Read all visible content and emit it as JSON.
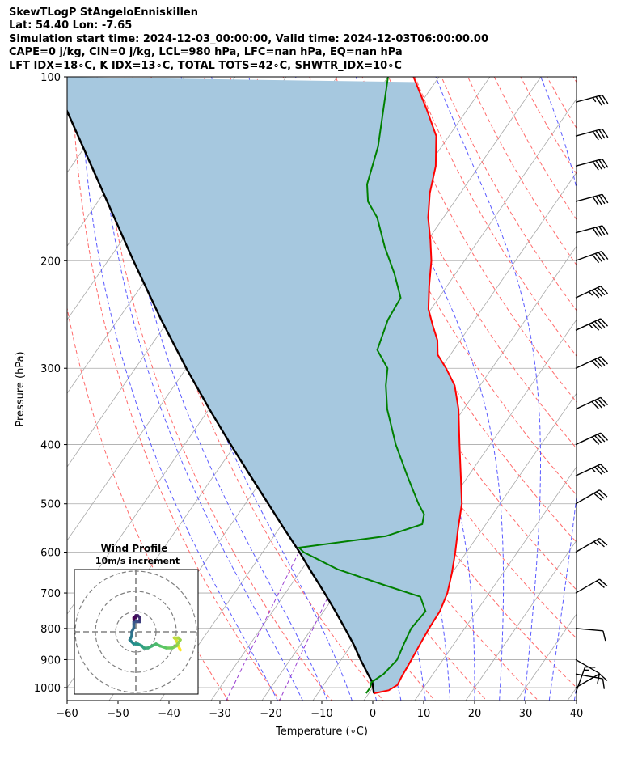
{
  "header": {
    "line1": "SkewTLogP StAngeloEnniskillen",
    "line2": "Lat: 54.40   Lon: -7.65",
    "line3": "Simulation start time: 2024-12-03_00:00:00, Valid time: 2024-12-03T06:00:00.00",
    "line4": "CAPE=0 j/kg, CIN=0 j/kg, LCL=980 hPa, LFC=nan hPa, EQ=nan hPa",
    "line5": "LFT IDX=18∘C, K IDX=13∘C, TOTAL TOTS=42∘C, SHWTR_IDX=10∘C"
  },
  "chart_data": {
    "type": "line",
    "xlabel": "Temperature (∘C)",
    "ylabel": "Pressure (hPa)",
    "xlim": [
      -60,
      40
    ],
    "ylim": [
      1050,
      100
    ],
    "y_scale": "log",
    "skew_per_decade_degC": 83,
    "x_ticks": [
      -60,
      -50,
      -40,
      -30,
      -20,
      -10,
      0,
      10,
      20,
      30,
      40
    ],
    "x_tick_labels": [
      "−60",
      "−50",
      "−40",
      "−30",
      "−20",
      "−10",
      "0",
      "10",
      "20",
      "30",
      "40"
    ],
    "y_ticks": [
      1000,
      900,
      800,
      700,
      600,
      500,
      400,
      300,
      200,
      100
    ],
    "y_tick_labels": [
      "1000",
      "900",
      "800",
      "700",
      "600",
      "500",
      "400",
      "300",
      "200",
      "100"
    ],
    "grid": true,
    "colors": {
      "temperature": "#ff0000",
      "dewpoint": "#008000",
      "parcel": "#000000",
      "cape_fill": "#a6c8df",
      "dry_adiabat": "#ff6a6a",
      "moist_adiabat": "#5a5aff",
      "mixing_ratio": "#9a3fd1",
      "isotherm": "#a9a9a9"
    },
    "series": [
      {
        "key": "temperature",
        "points": [
          [
            1022,
            1.0
          ],
          [
            1010,
            3.5
          ],
          [
            990,
            4.5
          ],
          [
            960,
            4.2
          ],
          [
            900,
            3.8
          ],
          [
            850,
            3.4
          ],
          [
            800,
            3.0
          ],
          [
            750,
            2.8
          ],
          [
            700,
            1.8
          ],
          [
            650,
            0.0
          ],
          [
            600,
            -2.2
          ],
          [
            550,
            -4.8
          ],
          [
            500,
            -7.5
          ],
          [
            450,
            -11.5
          ],
          [
            400,
            -16.0
          ],
          [
            350,
            -21.0
          ],
          [
            320,
            -25.0
          ],
          [
            300,
            -29.0
          ],
          [
            285,
            -32.5
          ],
          [
            270,
            -34.5
          ],
          [
            255,
            -37.5
          ],
          [
            240,
            -40.5
          ],
          [
            220,
            -43.5
          ],
          [
            200,
            -46.5
          ],
          [
            185,
            -49.5
          ],
          [
            170,
            -53.0
          ],
          [
            155,
            -56.0
          ],
          [
            140,
            -58.5
          ],
          [
            125,
            -62.5
          ],
          [
            113,
            -68.0
          ],
          [
            100,
            -75.0
          ]
        ]
      },
      {
        "key": "dewpoint",
        "points": [
          [
            1022,
            -0.5
          ],
          [
            1000,
            -0.5
          ],
          [
            980,
            -1.0
          ],
          [
            950,
            0.3
          ],
          [
            900,
            1.0
          ],
          [
            850,
            0.2
          ],
          [
            800,
            -0.5
          ],
          [
            750,
            0.0
          ],
          [
            710,
            -3.0
          ],
          [
            680,
            -11.5
          ],
          [
            640,
            -23.0
          ],
          [
            600,
            -32.0
          ],
          [
            590,
            -33.5
          ],
          [
            565,
            -18.0
          ],
          [
            540,
            -12.5
          ],
          [
            520,
            -13.5
          ],
          [
            500,
            -16.0
          ],
          [
            450,
            -22.0
          ],
          [
            400,
            -28.5
          ],
          [
            350,
            -35.0
          ],
          [
            320,
            -38.5
          ],
          [
            300,
            -40.5
          ],
          [
            280,
            -45.0
          ],
          [
            250,
            -47.0
          ],
          [
            230,
            -47.5
          ],
          [
            210,
            -52.0
          ],
          [
            190,
            -57.5
          ],
          [
            170,
            -63.0
          ],
          [
            160,
            -67.0
          ],
          [
            150,
            -69.5
          ],
          [
            130,
            -72.5
          ],
          [
            100,
            -80.0
          ]
        ]
      },
      {
        "key": "parcel",
        "points": [
          [
            1022,
            1.0
          ],
          [
            980,
            -0.8
          ],
          [
            950,
            -2.8
          ],
          [
            900,
            -6.2
          ],
          [
            850,
            -9.6
          ],
          [
            800,
            -13.5
          ],
          [
            750,
            -17.7
          ],
          [
            700,
            -22.3
          ],
          [
            650,
            -27.4
          ],
          [
            600,
            -32.8
          ],
          [
            550,
            -38.9
          ],
          [
            500,
            -45.5
          ],
          [
            450,
            -52.8
          ],
          [
            400,
            -60.9
          ],
          [
            350,
            -69.9
          ],
          [
            300,
            -80.0
          ],
          [
            250,
            -91.5
          ],
          [
            200,
            -105.0
          ],
          [
            150,
            -122.0
          ],
          [
            100,
            -146.0
          ]
        ]
      }
    ],
    "wind_barbs": [
      {
        "pressure": 1020,
        "speed_kt": 15,
        "dir_deg": 340
      },
      {
        "pressure": 1000,
        "speed_kt": 10,
        "dir_deg": 300
      },
      {
        "pressure": 950,
        "speed_kt": 10,
        "dir_deg": 260
      },
      {
        "pressure": 900,
        "speed_kt": 10,
        "dir_deg": 240
      },
      {
        "pressure": 800,
        "speed_kt": 10,
        "dir_deg": 265
      },
      {
        "pressure": 700,
        "speed_kt": 20,
        "dir_deg": 300
      },
      {
        "pressure": 600,
        "speed_kt": 25,
        "dir_deg": 300
      },
      {
        "pressure": 500,
        "speed_kt": 30,
        "dir_deg": 300
      },
      {
        "pressure": 450,
        "speed_kt": 35,
        "dir_deg": 295
      },
      {
        "pressure": 400,
        "speed_kt": 40,
        "dir_deg": 295
      },
      {
        "pressure": 350,
        "speed_kt": 40,
        "dir_deg": 295
      },
      {
        "pressure": 300,
        "speed_kt": 40,
        "dir_deg": 295
      },
      {
        "pressure": 260,
        "speed_kt": 45,
        "dir_deg": 295
      },
      {
        "pressure": 230,
        "speed_kt": 45,
        "dir_deg": 295
      },
      {
        "pressure": 200,
        "speed_kt": 40,
        "dir_deg": 290
      },
      {
        "pressure": 180,
        "speed_kt": 40,
        "dir_deg": 285
      },
      {
        "pressure": 160,
        "speed_kt": 40,
        "dir_deg": 285
      },
      {
        "pressure": 140,
        "speed_kt": 40,
        "dir_deg": 285
      },
      {
        "pressure": 125,
        "speed_kt": 40,
        "dir_deg": 285
      },
      {
        "pressure": 110,
        "speed_kt": 35,
        "dir_deg": 285
      }
    ],
    "hodograph": {
      "title": "Wind Profile",
      "subtitle": "10m/s increment",
      "ring_spacing_ms": 10,
      "rings": 3,
      "points_uv_ms": [
        [
          22,
          -9
        ],
        [
          21,
          -7
        ],
        [
          20,
          -4
        ],
        [
          19,
          -3
        ],
        [
          21,
          -3
        ],
        [
          22,
          -4
        ],
        [
          20,
          -7
        ],
        [
          18,
          -8
        ],
        [
          15,
          -8
        ],
        [
          12,
          -7
        ],
        [
          10,
          -6
        ],
        [
          8,
          -7
        ],
        [
          6,
          -8
        ],
        [
          4,
          -8
        ],
        [
          3,
          -7
        ],
        [
          1,
          -6
        ],
        [
          -1,
          -6
        ],
        [
          -2,
          -5
        ],
        [
          -3,
          -4
        ],
        [
          -2,
          -2
        ],
        [
          -2,
          0
        ],
        [
          -1,
          2
        ],
        [
          -1,
          4
        ],
        [
          -1,
          5
        ],
        [
          1,
          5
        ],
        [
          2,
          5
        ],
        [
          2,
          6
        ],
        [
          2,
          7
        ],
        [
          1,
          8
        ],
        [
          0,
          8
        ],
        [
          0,
          7
        ],
        [
          -1,
          7
        ],
        [
          -1,
          6
        ]
      ]
    }
  }
}
